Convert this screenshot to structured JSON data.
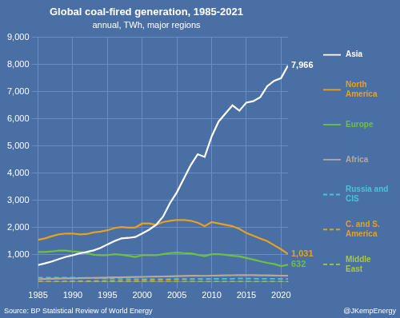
{
  "chart_data": {
    "type": "line",
    "title": "Global coal-fired generation, 1985-2021",
    "subtitle": "annual, TWh, major regions",
    "footnotes": [
      "Source: BP Statistical Review of World Energy",
      "@JKempEnergy"
    ],
    "x": [
      1985,
      1986,
      1987,
      1988,
      1989,
      1990,
      1991,
      1992,
      1993,
      1994,
      1995,
      1996,
      1997,
      1998,
      1999,
      2000,
      2001,
      2002,
      2003,
      2004,
      2005,
      2006,
      2007,
      2008,
      2009,
      2010,
      2011,
      2012,
      2013,
      2014,
      2015,
      2016,
      2017,
      2018,
      2019,
      2020,
      2021
    ],
    "series": [
      {
        "name": "Asia",
        "color": "#ffffff",
        "line_style": "solid",
        "values": [
          620,
          680,
          750,
          840,
          920,
          980,
          1050,
          1100,
          1160,
          1250,
          1380,
          1500,
          1600,
          1620,
          1650,
          1780,
          1920,
          2100,
          2400,
          2900,
          3300,
          3800,
          4300,
          4700,
          4600,
          5350,
          5900,
          6200,
          6500,
          6300,
          6600,
          6650,
          6800,
          7200,
          7400,
          7500,
          7966
        ]
      },
      {
        "name": "North\nAmerica",
        "color": "#e8a020",
        "line_style": "solid",
        "values": [
          1550,
          1600,
          1680,
          1750,
          1780,
          1780,
          1750,
          1760,
          1820,
          1850,
          1900,
          1980,
          2020,
          2000,
          2000,
          2150,
          2150,
          2100,
          2200,
          2250,
          2280,
          2280,
          2250,
          2180,
          2050,
          2200,
          2150,
          2100,
          2050,
          1950,
          1800,
          1700,
          1600,
          1500,
          1350,
          1200,
          1031
        ]
      },
      {
        "name": "Europe",
        "color": "#70c040",
        "line_style": "solid",
        "values": [
          1100,
          1100,
          1120,
          1150,
          1150,
          1120,
          1100,
          1060,
          1000,
          980,
          980,
          1020,
          1000,
          960,
          920,
          980,
          980,
          980,
          1020,
          1060,
          1080,
          1060,
          1050,
          1000,
          950,
          1020,
          1020,
          1000,
          960,
          940,
          880,
          820,
          760,
          700,
          660,
          580,
          632
        ]
      },
      {
        "name": "Africa",
        "color": "#b8a898",
        "line_style": "solid",
        "values": [
          100,
          108,
          115,
          122,
          128,
          132,
          138,
          142,
          148,
          152,
          158,
          164,
          170,
          175,
          180,
          186,
          192,
          196,
          200,
          206,
          212,
          218,
          224,
          228,
          222,
          230,
          236,
          240,
          244,
          248,
          248,
          245,
          242,
          238,
          235,
          230,
          225
        ]
      },
      {
        "name": "Russia and\nCIS",
        "color": "#40c8d8",
        "line_style": "dashed",
        "values": [
          160,
          162,
          164,
          166,
          165,
          163,
          155,
          145,
          135,
          128,
          122,
          118,
          114,
          108,
          102,
          100,
          102,
          104,
          106,
          108,
          110,
          112,
          114,
          116,
          112,
          116,
          118,
          120,
          122,
          124,
          122,
          120,
          118,
          120,
          118,
          115,
          112
        ]
      },
      {
        "name": "C. and S.\nAmerica",
        "color": "#e8a020",
        "line_style": "dashed",
        "values": [
          20,
          22,
          24,
          26,
          28,
          30,
          32,
          34,
          36,
          38,
          42,
          46,
          50,
          52,
          54,
          58,
          62,
          66,
          72,
          78,
          84,
          90,
          96,
          102,
          100,
          108,
          114,
          118,
          122,
          126,
          126,
          124,
          122,
          120,
          118,
          110,
          105
        ]
      },
      {
        "name": "Middle\nEast",
        "color": "#a8c840",
        "line_style": "dashed",
        "values": [
          5,
          5,
          5,
          5,
          5,
          5,
          5,
          5,
          5,
          5,
          5,
          5,
          5,
          5,
          5,
          6,
          6,
          6,
          6,
          8,
          10,
          12,
          14,
          16,
          16,
          18,
          18,
          18,
          18,
          18,
          18,
          18,
          18,
          18,
          18,
          18,
          18
        ]
      }
    ],
    "xlim": [
      1985,
      2021
    ],
    "xticks": [
      1985,
      1990,
      1995,
      2000,
      2005,
      2010,
      2015,
      2020
    ],
    "ylim": [
      0,
      9000
    ],
    "yticks": [
      {
        "value": 1000,
        "label": "1,000"
      },
      {
        "value": 2000,
        "label": "2,000"
      },
      {
        "value": 3000,
        "label": "3,000"
      },
      {
        "value": 4000,
        "label": "4,000"
      },
      {
        "value": 5000,
        "label": "5,000"
      },
      {
        "value": 6000,
        "label": "6,000"
      },
      {
        "value": 7000,
        "label": "7,000"
      },
      {
        "value": 8000,
        "label": "8,000"
      },
      {
        "value": 9000,
        "label": "9,000"
      }
    ],
    "annotations": [
      {
        "text": "7,966",
        "x": 2021,
        "y": 7966,
        "color": "#ffffff"
      },
      {
        "text": "1,031",
        "x": 2021,
        "y": 1031,
        "color": "#e8a020"
      },
      {
        "text": "632",
        "x": 2021,
        "y": 632,
        "color": "#70c040"
      }
    ],
    "grid": true,
    "legend": "right"
  }
}
